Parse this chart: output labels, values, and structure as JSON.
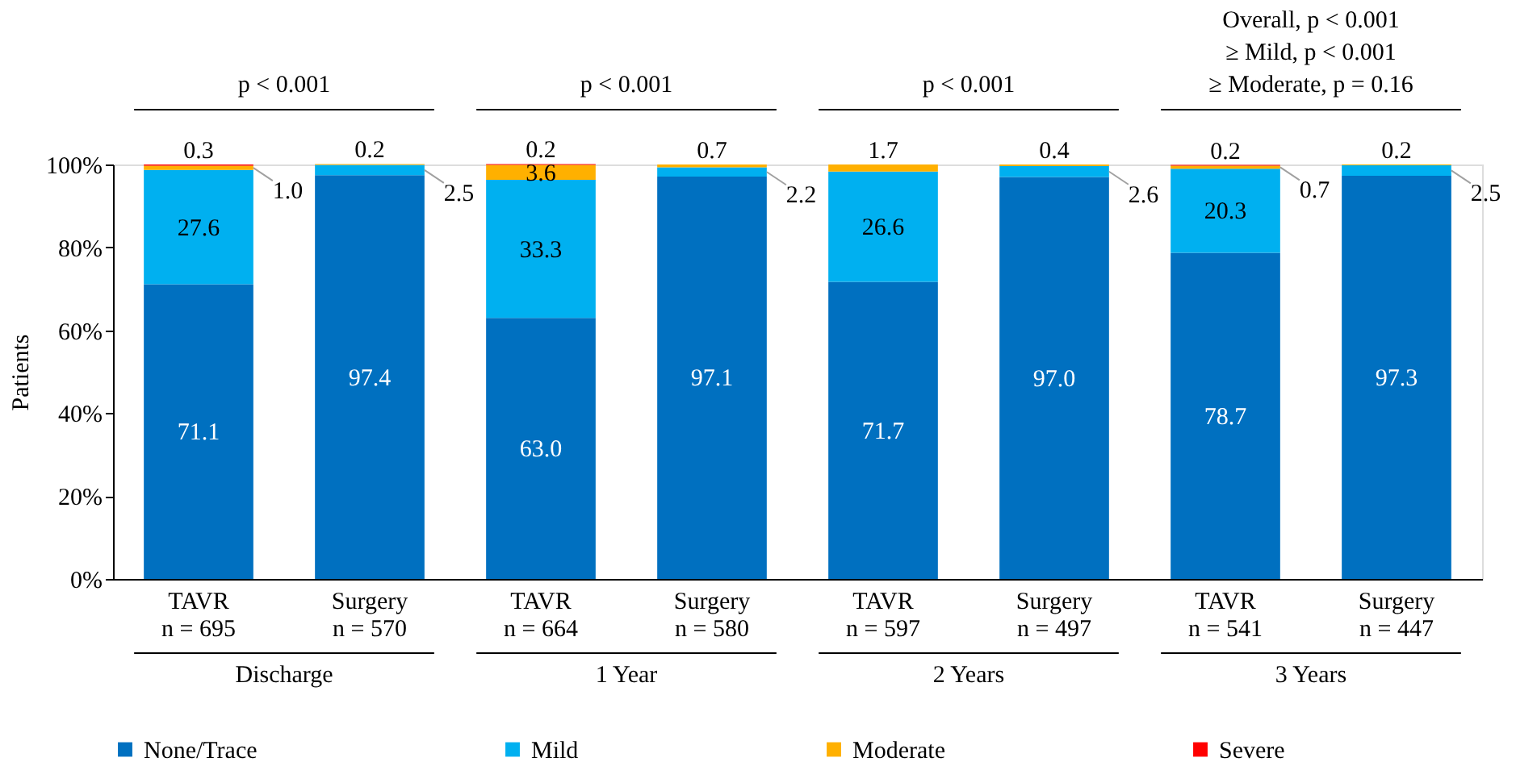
{
  "chart_data": {
    "type": "bar",
    "stacked": true,
    "categories": [
      "TAVR\nn = 695",
      "Surgery\nn = 570",
      "TAVR\nn = 664",
      "Surgery\nn = 580",
      "TAVR\nn = 597",
      "Surgery\nn = 497",
      "TAVR\nn = 541",
      "Surgery\nn = 447"
    ],
    "ylabel": "Patients",
    "ylim": [
      0,
      100
    ],
    "yticks": [
      {
        "value": 0,
        "label": "0%"
      },
      {
        "value": 20,
        "label": "20%"
      },
      {
        "value": 40,
        "label": "40%"
      },
      {
        "value": 60,
        "label": "60%"
      },
      {
        "value": 80,
        "label": "80%"
      },
      {
        "value": 100,
        "label": "100%"
      }
    ],
    "series": [
      {
        "name": "None/Trace",
        "color": "#0070c0",
        "values": [
          71.1,
          97.4,
          63.0,
          97.1,
          71.7,
          97.0,
          78.7,
          97.3
        ],
        "value_labels": [
          "71.1",
          "97.4",
          "63.0",
          "97.1",
          "71.7",
          "97.0",
          "78.7",
          "97.3"
        ]
      },
      {
        "name": "Mild",
        "color": "#00b0f0",
        "values": [
          27.6,
          2.5,
          33.3,
          2.2,
          26.6,
          2.6,
          20.3,
          2.5
        ],
        "value_labels": [
          "27.6",
          "2.5",
          "33.3",
          "2.2",
          "26.6",
          "2.6",
          "20.3",
          "2.5"
        ]
      },
      {
        "name": "Moderate",
        "color": "#ffb000",
        "values": [
          1.0,
          0.2,
          3.6,
          0.7,
          1.7,
          0.4,
          0.7,
          0.2
        ],
        "value_labels": [
          "1.0",
          "0.2",
          "3.6",
          "0.7",
          "1.7",
          "0.4",
          "0.7",
          "0.2"
        ]
      },
      {
        "name": "Severe",
        "color": "#ff0000",
        "values": [
          0.3,
          null,
          0.2,
          null,
          null,
          null,
          0.2,
          null
        ],
        "value_labels": [
          "0.3",
          null,
          "0.2",
          null,
          null,
          null,
          "0.2",
          null
        ]
      }
    ],
    "annotations": [
      "Discharge",
      "1 Year",
      "2 Years",
      "3 Years",
      "p < 0.001",
      "p < 0.001",
      "p < 0.001",
      "Overall, p < 0.001\n≥ Mild, p < 0.001\n≥ Moderate, p = 0.16"
    ],
    "legend": "bottom",
    "grid": false
  }
}
